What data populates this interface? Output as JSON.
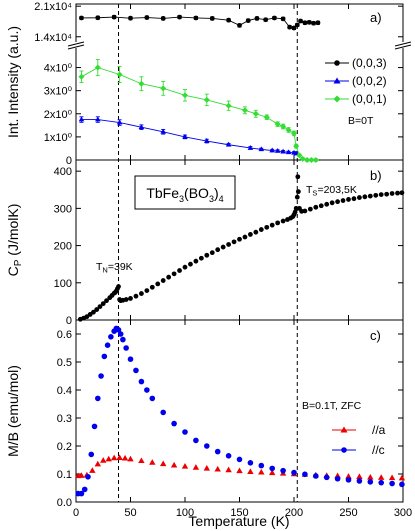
{
  "chart_data": [
    {
      "panel": "a",
      "type": "scatter",
      "panel_label": "a)",
      "ylabel": "Int. Intensity (a.u.)",
      "xlim": [
        0,
        300
      ],
      "ylim_lower": [
        0,
        4.5
      ],
      "ylim_upper": [
        12800,
        21500
      ],
      "yticks_lower": [
        {
          "v": 0,
          "label": "0"
        },
        {
          "v": 1,
          "label": "1x10⁰"
        },
        {
          "v": 2,
          "label": "2x10⁰"
        },
        {
          "v": 3,
          "label": "3x10⁰"
        },
        {
          "v": 4,
          "label": "4x10⁰"
        }
      ],
      "yticks_upper": [
        {
          "v": 14000,
          "label": "1.4x10⁴"
        },
        {
          "v": 21000,
          "label": "2.1x10⁴"
        }
      ],
      "annotation": "B=0T",
      "legend_position": "right",
      "series": [
        {
          "name": "(0,0,3)",
          "color": "#000000",
          "marker": "circle",
          "axis": "upper",
          "x": [
            5,
            20,
            35,
            50,
            65,
            80,
            95,
            110,
            125,
            140,
            150,
            158,
            166,
            174,
            182,
            190,
            196,
            200,
            203,
            206,
            210,
            214,
            218,
            222
          ],
          "y": [
            18300,
            18350,
            18500,
            18250,
            18400,
            18200,
            18500,
            18300,
            18200,
            17800,
            16600,
            17700,
            18200,
            17900,
            18300,
            18100,
            16200,
            16000,
            16700,
            17600,
            17200,
            17300,
            17100,
            17200
          ],
          "err": [
            350,
            350,
            350,
            350,
            350,
            350,
            350,
            350,
            350,
            350,
            350,
            350,
            350,
            350,
            350,
            350,
            350,
            350,
            350,
            350,
            350,
            350,
            350,
            350
          ]
        },
        {
          "name": "(0,0,2)",
          "color": "#0000ee",
          "marker": "triangle",
          "axis": "lower",
          "x": [
            5,
            20,
            40,
            60,
            80,
            100,
            120,
            140,
            160,
            170,
            180,
            185,
            190,
            195,
            200,
            202
          ],
          "y": [
            1.75,
            1.75,
            1.62,
            1.42,
            1.22,
            1.0,
            0.82,
            0.66,
            0.52,
            0.46,
            0.41,
            0.39,
            0.36,
            0.33,
            0.31,
            0.28
          ],
          "err": [
            0.12,
            0.12,
            0.12,
            0.1,
            0.1,
            0.08,
            0.08,
            0.06,
            0.06,
            0.05,
            0.05,
            0.05,
            0.05,
            0.05,
            0.05,
            0.05
          ]
        },
        {
          "name": "(0,0,1)",
          "color": "#33dd33",
          "marker": "diamond",
          "axis": "lower",
          "x": [
            5,
            20,
            40,
            60,
            80,
            100,
            120,
            140,
            155,
            165,
            175,
            185,
            190,
            195,
            200,
            202,
            205,
            208,
            212,
            216,
            220
          ],
          "y": [
            3.6,
            4.0,
            3.7,
            3.3,
            3.1,
            2.8,
            2.6,
            2.35,
            2.15,
            2.0,
            1.85,
            1.55,
            1.45,
            1.3,
            1.15,
            0.6,
            0.2,
            0.05,
            0.0,
            0.0,
            0.0
          ],
          "err": [
            0.25,
            0.35,
            0.35,
            0.3,
            0.3,
            0.25,
            0.25,
            0.2,
            0.15,
            0.15,
            0.1,
            0.1,
            0.1,
            0.1,
            0.1,
            0.08,
            0.05,
            0.05,
            0.05,
            0.05,
            0.05
          ]
        }
      ]
    },
    {
      "panel": "b",
      "type": "scatter",
      "panel_label": "b)",
      "title_box": "TbFe3(BO3)4",
      "ylabel": "C_P (J/molK)",
      "xlim": [
        0,
        300
      ],
      "ylim": [
        0,
        430
      ],
      "yticks": [
        0,
        100,
        200,
        300,
        400
      ],
      "annotations": [
        {
          "text": "T_N=39K",
          "x": 39,
          "y": 135
        },
        {
          "text": "T_S=203,5K",
          "x": 208,
          "y": 400
        }
      ],
      "series": [
        {
          "name": "",
          "color": "#000000",
          "marker": "circle",
          "x": [
            4,
            7,
            10,
            13,
            16,
            19,
            22,
            25,
            28,
            31,
            33,
            35,
            36,
            37,
            38,
            39,
            40,
            41,
            43,
            46,
            50,
            55,
            60,
            65,
            70,
            75,
            80,
            85,
            90,
            95,
            100,
            105,
            110,
            115,
            120,
            125,
            130,
            135,
            140,
            145,
            150,
            155,
            160,
            165,
            170,
            175,
            180,
            185,
            190,
            194,
            197,
            199,
            200,
            201,
            202,
            203,
            203.5,
            204,
            205,
            207,
            210,
            215,
            220,
            225,
            230,
            235,
            240,
            245,
            250,
            255,
            260,
            265,
            270,
            275,
            280,
            285,
            290,
            295,
            299
          ],
          "y": [
            2,
            5,
            9,
            15,
            21,
            28,
            36,
            44,
            52,
            60,
            66,
            72,
            74,
            78,
            84,
            90,
            55,
            52,
            53,
            55,
            58,
            64,
            71,
            79,
            88,
            97,
            106,
            115,
            124,
            133,
            142,
            150,
            158,
            166,
            174,
            181,
            189,
            196,
            203,
            210,
            217,
            223,
            230,
            236,
            243,
            249,
            255,
            261,
            266,
            270,
            274,
            278,
            283,
            290,
            300,
            330,
            385,
            345,
            300,
            292,
            293,
            298,
            303,
            307,
            311,
            315,
            318,
            321,
            324,
            326,
            329,
            331,
            333,
            335,
            337,
            338,
            340,
            341,
            342
          ]
        }
      ]
    },
    {
      "panel": "c",
      "type": "scatter",
      "panel_label": "c)",
      "ylabel": "M/B (emu/mol)",
      "xlabel": "Temperature (K)",
      "xlim": [
        0,
        300
      ],
      "ylim": [
        0,
        0.65
      ],
      "yticks": [
        0.0,
        0.1,
        0.2,
        0.3,
        0.4,
        0.5,
        0.6
      ],
      "xticks": [
        0,
        50,
        100,
        150,
        200,
        250,
        300
      ],
      "annotation": "B=0.1T, ZFC",
      "legend_position": "right",
      "series": [
        {
          "name": "//a",
          "color": "#ee0000",
          "marker": "triangle",
          "x": [
            2,
            5,
            10,
            15,
            20,
            25,
            30,
            35,
            40,
            45,
            50,
            60,
            70,
            80,
            90,
            100,
            110,
            120,
            130,
            140,
            150,
            160,
            170,
            180,
            190,
            200,
            210,
            220,
            230,
            240,
            250,
            260,
            270,
            280,
            290,
            299
          ],
          "y": [
            0.093,
            0.094,
            0.096,
            0.112,
            0.135,
            0.148,
            0.153,
            0.157,
            0.158,
            0.156,
            0.153,
            0.147,
            0.141,
            0.136,
            0.131,
            0.127,
            0.123,
            0.12,
            0.117,
            0.114,
            0.111,
            0.108,
            0.106,
            0.104,
            0.102,
            0.1,
            0.098,
            0.096,
            0.094,
            0.093,
            0.091,
            0.09,
            0.088,
            0.087,
            0.086,
            0.085
          ]
        },
        {
          "name": "//c",
          "color": "#0000ee",
          "marker": "circle",
          "x": [
            2,
            5,
            8,
            11,
            14,
            17,
            20,
            23,
            26,
            29,
            32,
            35,
            37,
            39,
            41,
            43,
            46,
            50,
            55,
            60,
            65,
            70,
            80,
            90,
            100,
            110,
            120,
            130,
            140,
            150,
            160,
            170,
            180,
            190,
            200,
            210,
            220,
            230,
            240,
            250,
            260,
            270,
            280,
            290,
            299
          ],
          "y": [
            0.03,
            0.03,
            0.045,
            0.09,
            0.17,
            0.27,
            0.37,
            0.45,
            0.52,
            0.56,
            0.59,
            0.61,
            0.62,
            0.615,
            0.6,
            0.58,
            0.55,
            0.51,
            0.47,
            0.43,
            0.4,
            0.37,
            0.32,
            0.28,
            0.25,
            0.22,
            0.2,
            0.18,
            0.165,
            0.152,
            0.14,
            0.13,
            0.12,
            0.112,
            0.105,
            0.099,
            0.093,
            0.088,
            0.083,
            0.079,
            0.075,
            0.072,
            0.069,
            0.066,
            0.063
          ]
        }
      ]
    }
  ],
  "vertical_markers_x": [
    39,
    203
  ]
}
